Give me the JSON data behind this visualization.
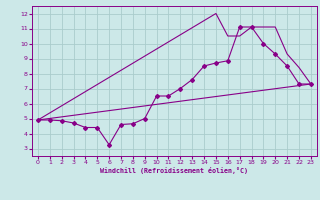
{
  "title": "",
  "xlabel": "Windchill (Refroidissement éolien,°C)",
  "xlim": [
    -0.5,
    23.5
  ],
  "ylim": [
    2.5,
    12.5
  ],
  "xticks": [
    0,
    1,
    2,
    3,
    4,
    5,
    6,
    7,
    8,
    9,
    10,
    11,
    12,
    13,
    14,
    15,
    16,
    17,
    18,
    19,
    20,
    21,
    22,
    23
  ],
  "yticks": [
    3,
    4,
    5,
    6,
    7,
    8,
    9,
    10,
    11,
    12
  ],
  "background_color": "#cce8e8",
  "grid_color": "#aacccc",
  "line_color": "#880088",
  "line1_x": [
    0,
    1,
    2,
    3,
    4,
    5,
    6,
    7,
    8,
    9,
    10,
    11,
    12,
    13,
    14,
    15,
    16,
    17,
    18,
    19,
    20,
    21,
    22,
    23
  ],
  "line1_y": [
    4.9,
    4.9,
    4.85,
    4.7,
    4.4,
    4.4,
    3.25,
    4.6,
    4.65,
    5.0,
    6.5,
    6.5,
    7.0,
    7.6,
    8.5,
    8.7,
    8.85,
    11.1,
    11.1,
    10.0,
    9.3,
    8.5,
    7.3,
    7.3
  ],
  "line2_x": [
    0,
    23
  ],
  "line2_y": [
    4.9,
    7.3
  ],
  "line3_x": [
    0,
    15,
    16,
    17,
    18,
    19,
    20,
    21,
    22,
    23
  ],
  "line3_y": [
    4.9,
    12.0,
    10.5,
    10.5,
    11.1,
    11.1,
    11.1,
    9.3,
    8.4,
    7.3
  ],
  "figsize": [
    3.2,
    2.0
  ],
  "dpi": 100
}
